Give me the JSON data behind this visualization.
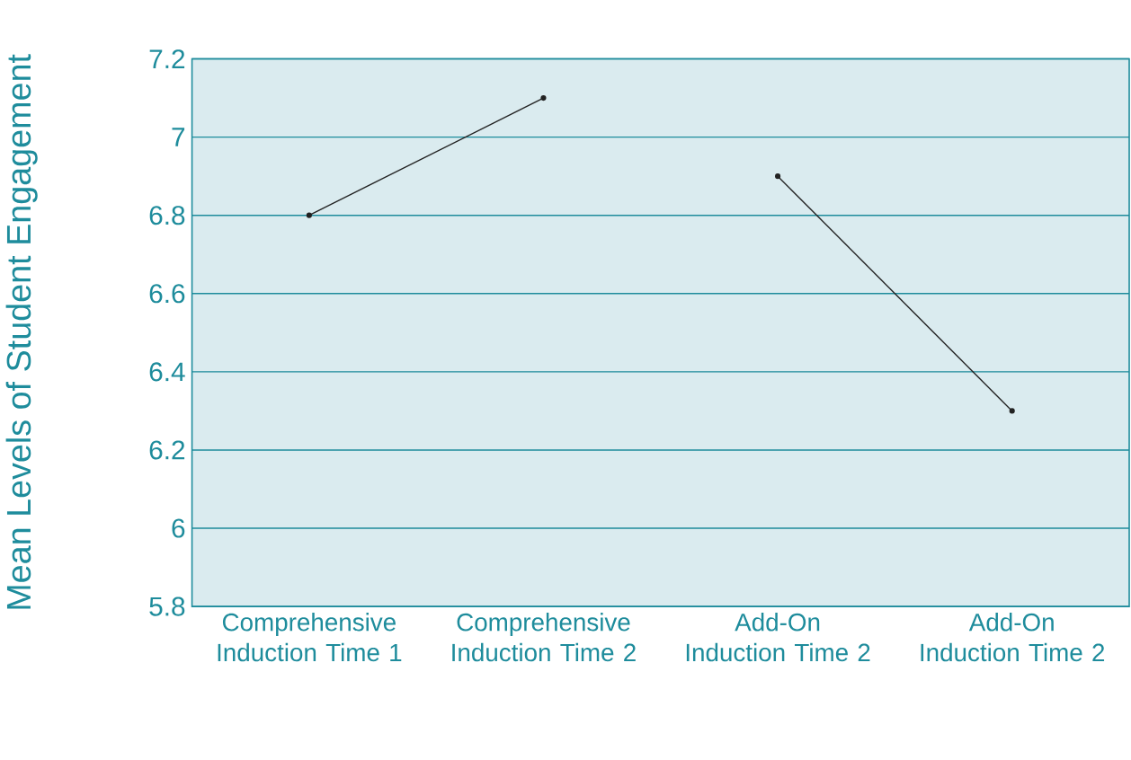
{
  "chart_data": {
    "type": "line",
    "ylabel": "Mean Levels of Student Engagement",
    "categories": [
      "Comprehensive Induction Time 1",
      "Comprehensive Induction Time 2",
      "Add-On Induction Time 2",
      "Add-On Induction Time 2"
    ],
    "series": [
      {
        "color": "#222222",
        "values": [
          6.8,
          7.1,
          null,
          null
        ]
      },
      {
        "color": "#222222",
        "values": [
          null,
          null,
          6.9,
          6.3
        ]
      }
    ],
    "ylim": [
      5.8,
      7.2
    ],
    "yticks": [
      5.8,
      6,
      6.2,
      6.4,
      6.6,
      6.8,
      7,
      7.2
    ],
    "grid": "y",
    "marker": "circle",
    "line_style": "solid"
  }
}
